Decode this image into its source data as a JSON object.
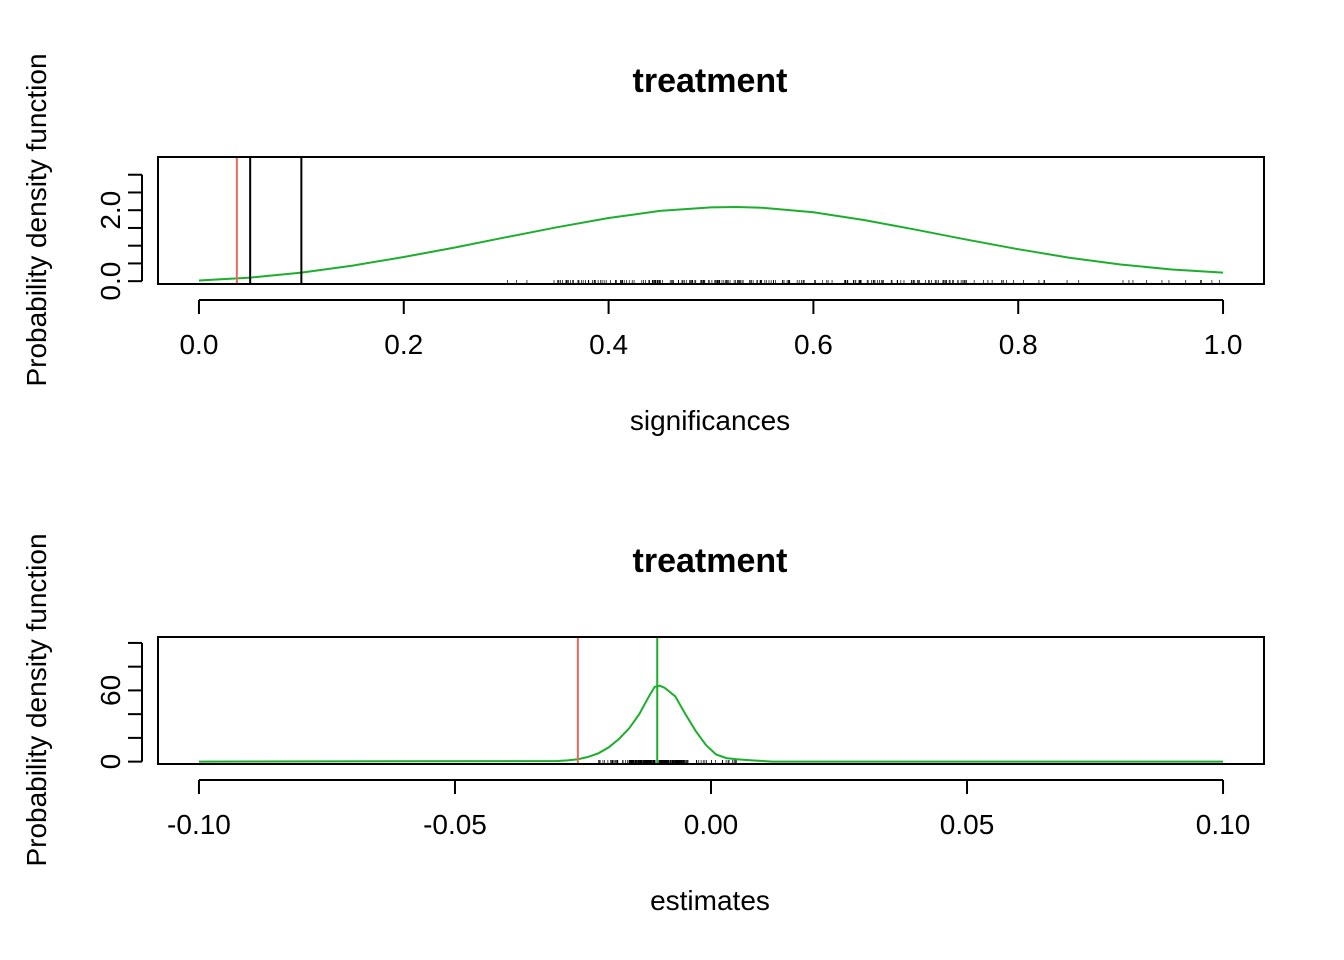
{
  "chart_data": [
    {
      "type": "line",
      "title": "treatment",
      "xlabel": "significances",
      "ylabel": "Probability density function",
      "xlim": [
        -0.04,
        1.04
      ],
      "ylim": [
        -0.08,
        3.5
      ],
      "x_ticks": [
        "0.0",
        "0.2",
        "0.4",
        "0.6",
        "0.8",
        "1.0"
      ],
      "x_tick_values": [
        0,
        0.2,
        0.4,
        0.6,
        0.8,
        1.0
      ],
      "y_ticks": [
        "0.0",
        "2.0"
      ],
      "y_tick_values": [
        0,
        2
      ],
      "y_minor_tick_values": [
        0,
        0.5,
        1.0,
        1.5,
        2.0,
        2.5,
        3.0
      ],
      "series": [
        {
          "color": "#1cae2c",
          "x": [
            0,
            0.05,
            0.1,
            0.15,
            0.2,
            0.25,
            0.3,
            0.35,
            0.4,
            0.45,
            0.5,
            0.525,
            0.55,
            0.6,
            0.65,
            0.7,
            0.75,
            0.8,
            0.85,
            0.9,
            0.95,
            1.0
          ],
          "values": [
            0.02,
            0.1,
            0.24,
            0.44,
            0.68,
            0.95,
            1.24,
            1.52,
            1.78,
            1.98,
            2.08,
            2.09,
            2.07,
            1.94,
            1.72,
            1.45,
            1.17,
            0.9,
            0.66,
            0.47,
            0.33,
            0.24
          ]
        }
      ],
      "vlines": [
        {
          "x": 0.037,
          "color": "#e8695a"
        },
        {
          "x": 0.05,
          "color": "#000000"
        },
        {
          "x": 0.1,
          "color": "#000000"
        }
      ],
      "rug": {
        "from": 0.3,
        "to": 1.0,
        "dense_from": 0.35,
        "dense_to": 0.75
      }
    },
    {
      "type": "line",
      "title": "treatment",
      "xlabel": "estimates",
      "ylabel": "Probability density function",
      "xlim": [
        -0.108,
        0.108
      ],
      "ylim": [
        -2,
        105
      ],
      "x_ticks": [
        "-0.10",
        "-0.05",
        "0.00",
        "0.05",
        "0.10"
      ],
      "x_tick_values": [
        -0.1,
        -0.05,
        0,
        0.05,
        0.1
      ],
      "y_ticks": [
        "0",
        "60"
      ],
      "y_tick_values": [
        0,
        60
      ],
      "y_minor_tick_values": [
        0,
        20,
        40,
        60,
        80,
        100
      ],
      "series": [
        {
          "color": "#1cae2c",
          "x": [
            -0.1,
            -0.03,
            -0.028,
            -0.026,
            -0.024,
            -0.022,
            -0.02,
            -0.018,
            -0.016,
            -0.014,
            -0.012,
            -0.011,
            -0.01,
            -0.009,
            -0.007,
            -0.005,
            -0.003,
            -0.001,
            0.001,
            0.003,
            0.005,
            0.008,
            0.012,
            0.1
          ],
          "values": [
            0,
            0.5,
            1,
            2,
            4,
            7,
            12,
            19,
            28,
            40,
            56,
            63,
            64,
            62,
            55,
            40,
            26,
            14,
            6,
            3,
            2,
            1,
            0,
            0
          ]
        }
      ],
      "vlines": [
        {
          "x": -0.026,
          "color": "#e8695a"
        },
        {
          "x": -0.0105,
          "color": "#1cae2c"
        }
      ],
      "rug": {
        "from": -0.022,
        "to": 0.005,
        "dense_from": -0.016,
        "dense_to": -0.005
      }
    }
  ]
}
